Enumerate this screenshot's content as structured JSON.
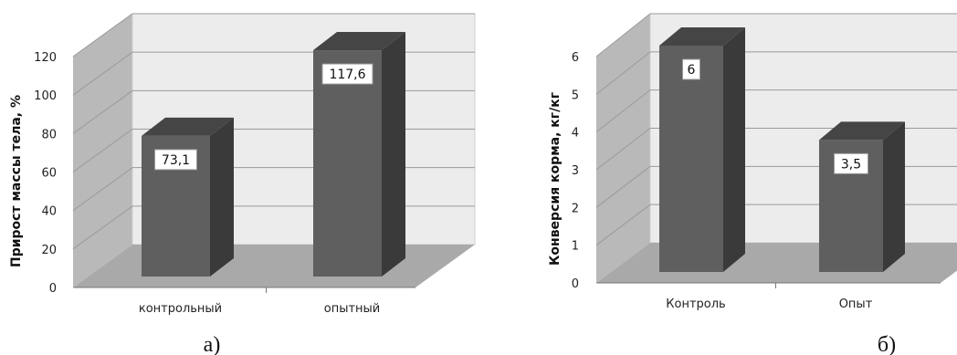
{
  "colors": {
    "back_wall": "#ececec",
    "side_wall": "#b9b9b9",
    "floor": "#a9a9a9",
    "bar_front": "#5f5f5f",
    "bar_side": "#3a3a3a",
    "bar_top": "#454545",
    "grid": "#9a9a9a"
  },
  "chart_data": [
    {
      "type": "bar",
      "categories": [
        "контрольный",
        "опытный"
      ],
      "values": [
        73.1,
        117.6
      ],
      "value_labels": [
        "73,1",
        "117,6"
      ],
      "ylabel": "Прирост массы тела, %",
      "ylim": [
        0,
        120
      ],
      "yticks": [
        "0",
        "20",
        "40",
        "60",
        "80",
        "100",
        "120"
      ],
      "grid": true,
      "caption": "а)"
    },
    {
      "type": "bar",
      "categories": [
        "Контроль",
        "Опыт"
      ],
      "values": [
        6,
        3.5
      ],
      "value_labels": [
        "6",
        "3,5"
      ],
      "ylabel": "Конверсия корма, кг/кг",
      "ylim": [
        0,
        6
      ],
      "yticks": [
        "0",
        "1",
        "2",
        "3",
        "4",
        "5",
        "6"
      ],
      "grid": true,
      "caption": "б)"
    }
  ]
}
